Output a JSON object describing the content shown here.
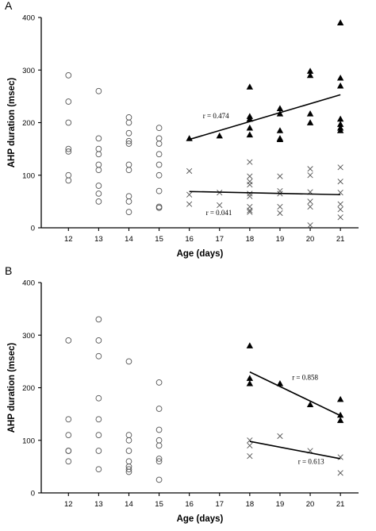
{
  "chart_data": [
    {
      "type": "scatter",
      "panel_label": "A",
      "xlabel": "Age (days)",
      "ylabel": "AHP duration (msec)",
      "x_ticks": [
        12,
        13,
        14,
        15,
        16,
        17,
        18,
        19,
        20,
        21
      ],
      "y_ticks": [
        0,
        100,
        200,
        300,
        400
      ],
      "xlim": [
        11.1,
        21.6
      ],
      "ylim": [
        0,
        400
      ],
      "series": [
        {
          "marker": "open-circle",
          "points": [
            [
              12,
              290
            ],
            [
              12,
              240
            ],
            [
              12,
              200
            ],
            [
              12,
              150
            ],
            [
              12,
              145
            ],
            [
              12,
              100
            ],
            [
              12,
              90
            ],
            [
              13,
              260
            ],
            [
              13,
              170
            ],
            [
              13,
              150
            ],
            [
              13,
              140
            ],
            [
              13,
              120
            ],
            [
              13,
              110
            ],
            [
              13,
              80
            ],
            [
              13,
              65
            ],
            [
              13,
              50
            ],
            [
              14,
              210
            ],
            [
              14,
              200
            ],
            [
              14,
              180
            ],
            [
              14,
              165
            ],
            [
              14,
              160
            ],
            [
              14,
              120
            ],
            [
              14,
              110
            ],
            [
              14,
              60
            ],
            [
              14,
              50
            ],
            [
              14,
              30
            ],
            [
              15,
              190
            ],
            [
              15,
              170
            ],
            [
              15,
              160
            ],
            [
              15,
              140
            ],
            [
              15,
              120
            ],
            [
              15,
              100
            ],
            [
              15,
              70
            ],
            [
              15,
              40
            ],
            [
              15,
              38
            ]
          ]
        },
        {
          "marker": "filled-triangle",
          "points": [
            [
              16,
              170
            ],
            [
              17,
              175
            ],
            [
              18,
              268
            ],
            [
              18,
              212
            ],
            [
              18,
              207
            ],
            [
              18,
              190
            ],
            [
              18,
              177
            ],
            [
              19,
              227
            ],
            [
              19,
              217
            ],
            [
              19,
              185
            ],
            [
              19,
              170
            ],
            [
              19,
              168
            ],
            [
              20,
              298
            ],
            [
              20,
              290
            ],
            [
              20,
              217
            ],
            [
              20,
              200
            ],
            [
              21,
              390
            ],
            [
              21,
              285
            ],
            [
              21,
              270
            ],
            [
              21,
              207
            ],
            [
              21,
              197
            ],
            [
              21,
              190
            ],
            [
              21,
              185
            ]
          ]
        },
        {
          "marker": "cross",
          "points": [
            [
              16,
              108
            ],
            [
              16,
              63
            ],
            [
              16,
              45
            ],
            [
              17,
              67
            ],
            [
              17,
              43
            ],
            [
              18,
              125
            ],
            [
              18,
              98
            ],
            [
              18,
              88
            ],
            [
              18,
              82
            ],
            [
              18,
              65
            ],
            [
              18,
              60
            ],
            [
              18,
              40
            ],
            [
              18,
              33
            ],
            [
              18,
              30
            ],
            [
              19,
              98
            ],
            [
              19,
              70
            ],
            [
              19,
              65
            ],
            [
              19,
              40
            ],
            [
              19,
              28
            ],
            [
              20,
              112
            ],
            [
              20,
              100
            ],
            [
              20,
              68
            ],
            [
              20,
              50
            ],
            [
              20,
              40
            ],
            [
              20,
              5
            ],
            [
              21,
              115
            ],
            [
              21,
              88
            ],
            [
              21,
              67
            ],
            [
              21,
              45
            ],
            [
              21,
              35
            ],
            [
              21,
              20
            ]
          ]
        }
      ],
      "fit_lines": [
        {
          "x": [
            16,
            21
          ],
          "y": [
            168,
            253
          ],
          "label": "r = 0.474",
          "label_at": [
            16.45,
            208
          ]
        },
        {
          "x": [
            16,
            21
          ],
          "y": [
            69,
            63
          ],
          "label": "r = 0.041",
          "label_at": [
            16.55,
            24
          ]
        }
      ]
    },
    {
      "type": "scatter",
      "panel_label": "B",
      "xlabel": "Age (days)",
      "ylabel": "AHP duration (msec)",
      "x_ticks": [
        12,
        13,
        14,
        15,
        16,
        17,
        18,
        19,
        20,
        21
      ],
      "y_ticks": [
        0,
        100,
        200,
        300,
        400
      ],
      "xlim": [
        11.1,
        21.6
      ],
      "ylim": [
        0,
        400
      ],
      "series": [
        {
          "marker": "open-circle",
          "points": [
            [
              12,
              290
            ],
            [
              12,
              140
            ],
            [
              12,
              110
            ],
            [
              12,
              80
            ],
            [
              12,
              80
            ],
            [
              12,
              60
            ],
            [
              13,
              330
            ],
            [
              13,
              290
            ],
            [
              13,
              260
            ],
            [
              13,
              180
            ],
            [
              13,
              140
            ],
            [
              13,
              110
            ],
            [
              13,
              80
            ],
            [
              13,
              45
            ],
            [
              14,
              250
            ],
            [
              14,
              110
            ],
            [
              14,
              100
            ],
            [
              14,
              80
            ],
            [
              14,
              60
            ],
            [
              14,
              50
            ],
            [
              14,
              45
            ],
            [
              14,
              40
            ],
            [
              15,
              210
            ],
            [
              15,
              160
            ],
            [
              15,
              120
            ],
            [
              15,
              100
            ],
            [
              15,
              90
            ],
            [
              15,
              65
            ],
            [
              15,
              60
            ],
            [
              15,
              25
            ]
          ]
        },
        {
          "marker": "filled-triangle",
          "points": [
            [
              18,
              280
            ],
            [
              18,
              218
            ],
            [
              18,
              208
            ],
            [
              19,
              208
            ],
            [
              20,
              168
            ],
            [
              21,
              178
            ],
            [
              21,
              148
            ],
            [
              21,
              138
            ]
          ]
        },
        {
          "marker": "cross",
          "points": [
            [
              18,
              100
            ],
            [
              18,
              90
            ],
            [
              18,
              70
            ],
            [
              19,
              108
            ],
            [
              20,
              80
            ],
            [
              21,
              68
            ],
            [
              21,
              38
            ]
          ]
        }
      ],
      "fit_lines": [
        {
          "x": [
            18,
            21
          ],
          "y": [
            230,
            147
          ],
          "label": "r = 0.858",
          "label_at": [
            19.4,
            215
          ]
        },
        {
          "x": [
            18,
            21
          ],
          "y": [
            98,
            65
          ],
          "label": "r = 0.613",
          "label_at": [
            19.6,
            55
          ]
        }
      ]
    }
  ]
}
